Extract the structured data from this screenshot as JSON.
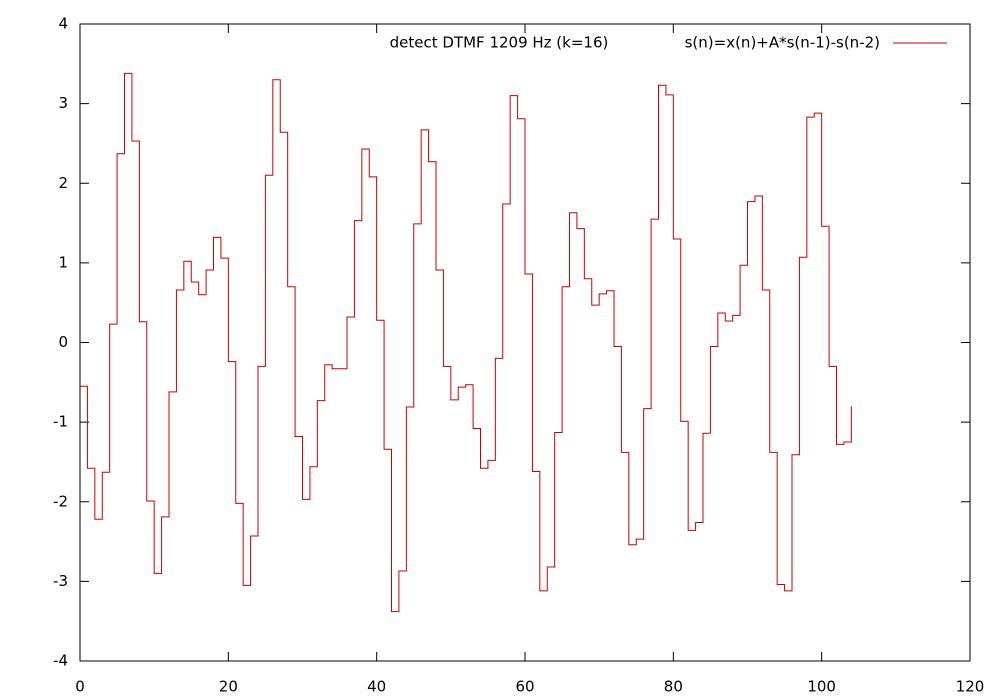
{
  "chart_data": {
    "type": "step",
    "title": "detect DTMF 1209 Hz (k=16)",
    "legend": "top-right",
    "x": [
      0,
      1,
      2,
      3,
      4,
      5,
      6,
      7,
      8,
      9,
      10,
      11,
      12,
      13,
      14,
      15,
      16,
      17,
      18,
      19,
      20,
      21,
      22,
      23,
      24,
      25,
      26,
      27,
      28,
      29,
      30,
      31,
      32,
      33,
      34,
      35,
      36,
      37,
      38,
      39,
      40,
      41,
      42,
      43,
      44,
      45,
      46,
      47,
      48,
      49,
      50,
      51,
      52,
      53,
      54,
      55,
      56,
      57,
      58,
      59,
      60,
      61,
      62,
      63,
      64,
      65,
      66,
      67,
      68,
      69,
      70,
      71,
      72,
      73,
      74,
      75,
      76,
      77,
      78,
      79,
      80,
      81,
      82,
      83,
      84,
      85,
      86,
      87,
      88,
      89,
      90,
      91,
      92,
      93,
      94,
      95,
      96,
      97,
      98,
      99,
      100,
      101,
      102,
      103,
      104
    ],
    "series": [
      {
        "name": "s(n)=x(n)+A*s(n-1)-s(n-2)",
        "color": "#cc0000",
        "values": [
          -0.55,
          -1.58,
          -2.22,
          -1.63,
          0.23,
          2.37,
          3.38,
          2.53,
          0.26,
          -1.99,
          -2.9,
          -2.19,
          -0.62,
          0.66,
          1.02,
          0.76,
          0.6,
          0.91,
          1.32,
          1.06,
          -0.24,
          -2.02,
          -3.05,
          -2.43,
          -0.3,
          2.1,
          3.3,
          2.64,
          0.7,
          -1.18,
          -1.97,
          -1.56,
          -0.73,
          -0.28,
          -0.33,
          -0.33,
          0.32,
          1.53,
          2.43,
          2.08,
          0.28,
          -1.34,
          -3.38,
          -2.87,
          -0.81,
          1.49,
          2.67,
          2.27,
          0.91,
          -0.3,
          -0.72,
          -0.56,
          -0.53,
          -1.08,
          -1.58,
          -1.48,
          -0.2,
          1.74,
          3.1,
          2.81,
          0.86,
          -1.62,
          -3.12,
          -2.82,
          -1.13,
          0.7,
          1.63,
          1.43,
          0.8,
          0.47,
          0.61,
          0.65,
          -0.05,
          -1.38,
          -2.54,
          -2.47,
          -0.83,
          1.55,
          3.23,
          3.11,
          1.3,
          -0.99,
          -2.36,
          -2.26,
          -1.14,
          -0.05,
          0.37,
          0.27,
          0.34,
          0.97,
          1.77,
          1.84,
          0.66,
          -1.38,
          -3.04,
          -3.12,
          -1.41,
          1.07,
          2.83,
          2.88,
          1.46,
          -0.3,
          -1.28,
          -1.25,
          -0.8
        ]
      }
    ],
    "xlim": [
      0,
      120
    ],
    "xticks": [
      0,
      20,
      40,
      60,
      80,
      100,
      120
    ],
    "ylim": [
      -4,
      4
    ],
    "yticks": [
      -4,
      -3,
      -2,
      -1,
      0,
      1,
      2,
      3,
      4
    ]
  }
}
